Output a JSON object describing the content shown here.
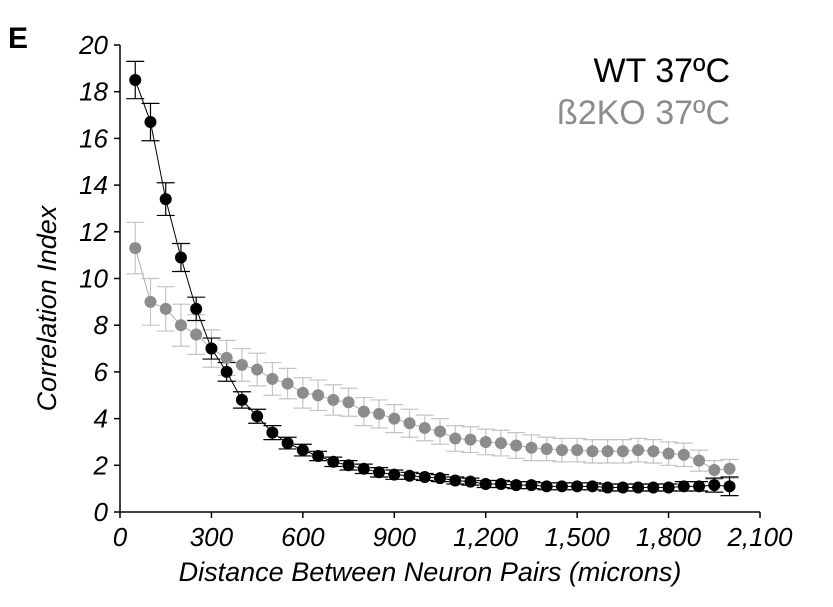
{
  "panel_label": "E",
  "chart_data": {
    "type": "scatter",
    "xlabel": "Distance Between Neuron Pairs (microns)",
    "ylabel": "Correlation Index",
    "xlim": [
      0,
      2100
    ],
    "ylim": [
      0,
      20
    ],
    "x_ticks": [
      0,
      300,
      600,
      900,
      1200,
      1500,
      1800,
      2100
    ],
    "x_tick_labels": [
      "0",
      "300",
      "600",
      "900",
      "1,200",
      "1,500",
      "1,800",
      "2,100"
    ],
    "y_ticks": [
      0,
      2,
      4,
      6,
      8,
      10,
      12,
      14,
      16,
      18,
      20
    ],
    "y_tick_labels": [
      "0",
      "2",
      "4",
      "6",
      "8",
      "10",
      "12",
      "14",
      "16",
      "18",
      "20"
    ],
    "grid": false,
    "legend_position": "top-right",
    "x": [
      50,
      100,
      150,
      200,
      250,
      300,
      350,
      400,
      450,
      500,
      550,
      600,
      650,
      700,
      750,
      800,
      850,
      900,
      950,
      1000,
      1050,
      1100,
      1150,
      1200,
      1250,
      1300,
      1350,
      1400,
      1450,
      1500,
      1550,
      1600,
      1650,
      1700,
      1750,
      1800,
      1850,
      1900,
      1950,
      2000
    ],
    "series": [
      {
        "name": "WT 37ºC",
        "color": "#000000",
        "values": [
          18.5,
          16.7,
          13.4,
          10.9,
          8.7,
          7.0,
          6.0,
          4.8,
          4.1,
          3.4,
          2.95,
          2.65,
          2.4,
          2.15,
          2.0,
          1.85,
          1.7,
          1.6,
          1.55,
          1.5,
          1.45,
          1.35,
          1.3,
          1.2,
          1.2,
          1.15,
          1.15,
          1.1,
          1.1,
          1.1,
          1.1,
          1.05,
          1.05,
          1.05,
          1.05,
          1.05,
          1.1,
          1.1,
          1.15,
          1.1
        ],
        "error": [
          0.8,
          0.8,
          0.7,
          0.6,
          0.5,
          0.45,
          0.4,
          0.35,
          0.3,
          0.3,
          0.25,
          0.25,
          0.2,
          0.2,
          0.2,
          0.2,
          0.2,
          0.2,
          0.15,
          0.15,
          0.15,
          0.15,
          0.15,
          0.15,
          0.15,
          0.15,
          0.15,
          0.15,
          0.15,
          0.15,
          0.15,
          0.15,
          0.15,
          0.15,
          0.15,
          0.15,
          0.2,
          0.2,
          0.3,
          0.4
        ]
      },
      {
        "name": "ß2KO 37ºC",
        "color": "#8c8c8c",
        "values": [
          11.3,
          9.0,
          8.7,
          8.0,
          7.6,
          7.0,
          6.6,
          6.3,
          6.1,
          5.7,
          5.5,
          5.1,
          5.0,
          4.8,
          4.7,
          4.3,
          4.2,
          4.0,
          3.8,
          3.6,
          3.45,
          3.15,
          3.1,
          3.0,
          2.95,
          2.85,
          2.75,
          2.7,
          2.65,
          2.65,
          2.6,
          2.6,
          2.6,
          2.65,
          2.6,
          2.5,
          2.45,
          2.2,
          1.8,
          1.85
        ]
      }
    ],
    "ko_error": [
      1.1,
      1.0,
      0.95,
      0.9,
      0.85,
      0.8,
      0.75,
      0.7,
      0.7,
      0.7,
      0.65,
      0.65,
      0.65,
      0.65,
      0.6,
      0.6,
      0.6,
      0.6,
      0.6,
      0.55,
      0.55,
      0.55,
      0.55,
      0.55,
      0.55,
      0.55,
      0.55,
      0.5,
      0.5,
      0.5,
      0.5,
      0.5,
      0.5,
      0.5,
      0.5,
      0.5,
      0.5,
      0.45,
      0.4,
      0.4
    ]
  }
}
